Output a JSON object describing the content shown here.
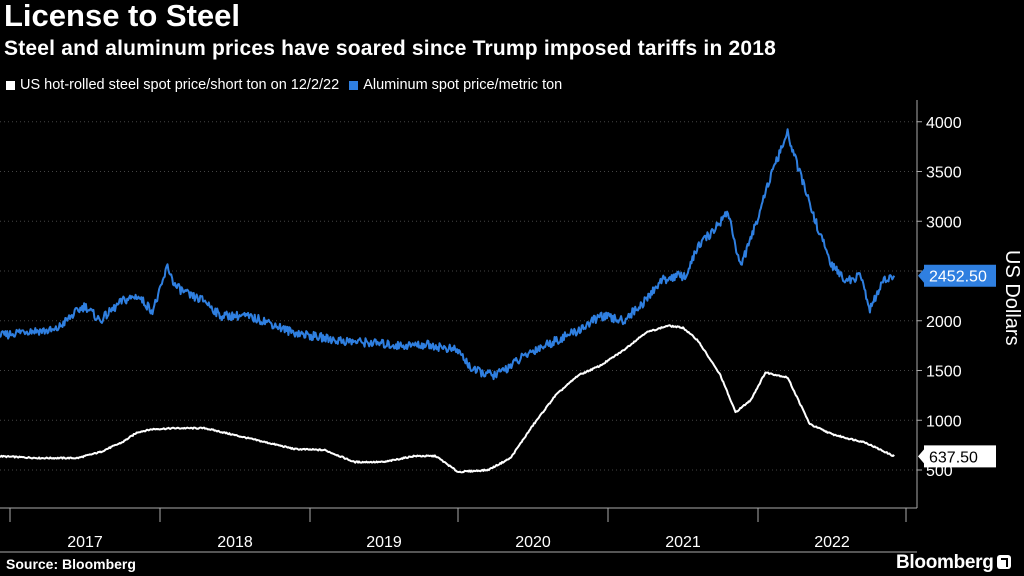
{
  "title": "License to Steel",
  "subtitle": "Steel and aluminum prices have soared since Trump imposed tariffs in 2018",
  "source": "Source: Bloomberg",
  "logo": "Bloomberg",
  "colors": {
    "steel": "#ffffff",
    "aluminum": "#2f7fe0",
    "background": "#000000",
    "grid": "#444444"
  },
  "chart_data": {
    "type": "line",
    "title": "License to Steel",
    "subtitle": "Steel and aluminum prices have soared since Trump imposed tariffs in 2018",
    "xlabel": "",
    "ylabel": "US Dollars",
    "ylim": [
      250,
      4150
    ],
    "xlim": [
      2016.3,
      2023.2
    ],
    "y_ticks": [
      500,
      1000,
      1500,
      2000,
      2500,
      3000,
      3500,
      4000
    ],
    "x_ticks": [
      "2017",
      "2018",
      "2019",
      "2020",
      "2021",
      "2022"
    ],
    "grid": "horizontal dotted",
    "legend_position": "top-left",
    "series": [
      {
        "name": "US hot-rolled steel spot price/short ton on 12/2/22",
        "color": "#ffffff",
        "last_value": "637.50",
        "x": [
          2016.3,
          2016.6,
          2016.9,
          2017.2,
          2017.45,
          2017.6,
          2017.75,
          2017.85,
          2017.95,
          2018.1,
          2018.3,
          2018.5,
          2018.7,
          2018.9,
          2019.1,
          2019.3,
          2019.5,
          2019.7,
          2019.85,
          2020.0,
          2020.2,
          2020.35,
          2020.5,
          2020.65,
          2020.8,
          2020.95,
          2021.1,
          2021.25,
          2021.4,
          2021.5,
          2021.6,
          2021.75,
          2021.85,
          2021.95,
          2022.05,
          2022.2,
          2022.35,
          2022.5,
          2022.6,
          2022.72,
          2022.92
        ],
        "y": [
          590,
          620,
          640,
          620,
          620,
          680,
          780,
          880,
          910,
          920,
          920,
          850,
          780,
          710,
          700,
          580,
          580,
          640,
          640,
          480,
          500,
          620,
          950,
          1250,
          1450,
          1550,
          1700,
          1880,
          1950,
          1930,
          1800,
          1450,
          1080,
          1200,
          1480,
          1430,
          960,
          860,
          820,
          780,
          637.5
        ]
      },
      {
        "name": "Aluminum spot price/metric ton",
        "color": "#2f7fe0",
        "last_value": "2452.50",
        "x": [
          2016.3,
          2016.45,
          2016.6,
          2016.8,
          2016.95,
          2017.1,
          2017.3,
          2017.45,
          2017.5,
          2017.6,
          2017.75,
          2017.85,
          2017.95,
          2018.0,
          2018.05,
          2018.1,
          2018.2,
          2018.3,
          2018.4,
          2018.55,
          2018.7,
          2018.85,
          2019.0,
          2019.2,
          2019.4,
          2019.6,
          2019.8,
          2020.0,
          2020.1,
          2020.25,
          2020.35,
          2020.5,
          2020.65,
          2020.8,
          2020.95,
          2021.1,
          2021.25,
          2021.35,
          2021.45,
          2021.52,
          2021.6,
          2021.7,
          2021.8,
          2021.88,
          2021.95,
          2022.05,
          2022.15,
          2022.2,
          2022.3,
          2022.4,
          2022.5,
          2022.6,
          2022.7,
          2022.75,
          2022.85,
          2022.92
        ],
        "y": [
          1700,
          1800,
          1850,
          1900,
          1850,
          1900,
          1900,
          2100,
          2150,
          2000,
          2200,
          2250,
          2100,
          2300,
          2550,
          2350,
          2250,
          2200,
          2050,
          2050,
          2000,
          1900,
          1850,
          1800,
          1780,
          1750,
          1760,
          1700,
          1500,
          1450,
          1550,
          1700,
          1800,
          1900,
          2050,
          2000,
          2200,
          2400,
          2450,
          2450,
          2750,
          2900,
          3100,
          2550,
          2800,
          3300,
          3700,
          3880,
          3400,
          2950,
          2550,
          2400,
          2450,
          2100,
          2400,
          2452.5
        ]
      }
    ]
  }
}
